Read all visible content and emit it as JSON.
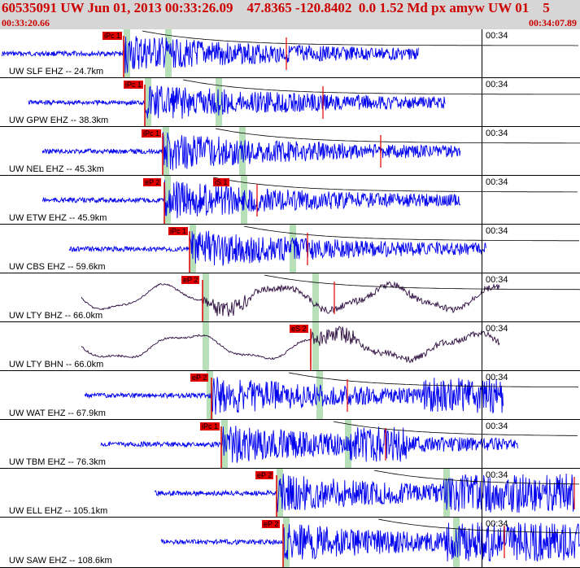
{
  "header": {
    "title": "60535091 UW Jun 01, 2013 00:33:26.09    47.8365 -120.8402  0.0 1.52 Md px amyw UW 01    5",
    "start_time": "00:33:20.66",
    "end_time": "00:34:07.89"
  },
  "colors": {
    "trace": "#0000ee",
    "broadband_trace": "#2b0a3d",
    "pick": "#e10000",
    "window": "#b8e0b8",
    "header_bg": "#d6d6d6",
    "header_text": "#cc0000"
  },
  "traces": [
    {
      "label": "UW SLF EHZ -- 24.7km",
      "time": "00:34",
      "pick": "iPc 1",
      "channel": "EHZ"
    },
    {
      "label": "UW GPW EHZ -- 38.3km",
      "time": "00:34",
      "pick": "iPc 1",
      "channel": "EHZ"
    },
    {
      "label": "UW NEL EHZ -- 45.3km",
      "time": "00:34",
      "pick": "iPc 1",
      "channel": "EHZ"
    },
    {
      "label": "UW ETW EHZ -- 45.9km",
      "time": "00:34",
      "pick": "eP 2",
      "pick2": "iS 1",
      "channel": "EHZ"
    },
    {
      "label": "UW CBS EHZ -- 59.6km",
      "time": "00:34",
      "pick": "iPc 1",
      "channel": "EHZ"
    },
    {
      "label": "UW LTY BHZ -- 66.0km",
      "time": "00:34",
      "pick": "eP 2",
      "channel": "BHZ"
    },
    {
      "label": "UW LTY BHN -- 66.0km",
      "time": "00:34",
      "pick": "eS 2",
      "channel": "BHN"
    },
    {
      "label": "UW WAT EHZ -- 67.9km",
      "time": "00:34",
      "pick": "eP 2",
      "channel": "EHZ"
    },
    {
      "label": "UW TBM EHZ -- 76.3km",
      "time": "00:34",
      "pick": "iPc 1",
      "channel": "EHZ"
    },
    {
      "label": "UW ELL EHZ -- 105.1km",
      "time": "00:34",
      "pick": "eP 2",
      "channel": "EHZ"
    },
    {
      "label": "UW SAW EHZ -- 108.6km",
      "time": "00:34",
      "pick": "eP 2",
      "channel": "EHZ"
    }
  ]
}
